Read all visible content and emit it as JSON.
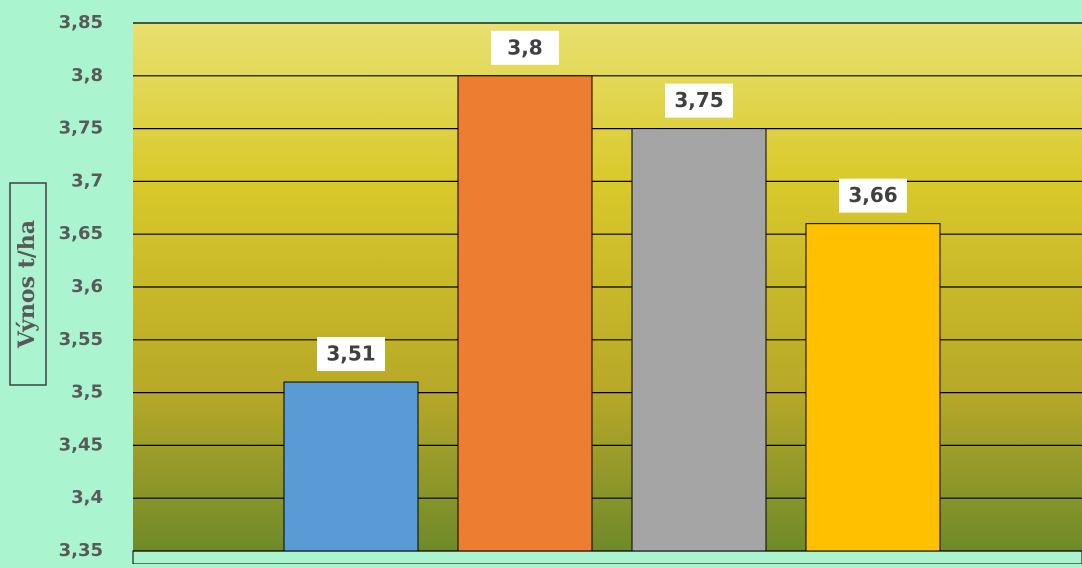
{
  "chart_data": {
    "type": "bar",
    "y_axis_label": "Výnos t/ha",
    "categories": [
      null,
      null,
      null,
      null
    ],
    "values": [
      3.51,
      3.8,
      3.75,
      3.66
    ],
    "value_labels": [
      "3,51",
      "3,8",
      "3,75",
      "3,66"
    ],
    "colors": [
      "#5b9bd5",
      "#ed7d31",
      "#a5a5a5",
      "#ffc000"
    ],
    "ylim": [
      3.35,
      3.85
    ],
    "yticks": [
      {
        "value": 3.35,
        "label": "3,35"
      },
      {
        "value": 3.4,
        "label": "3,4"
      },
      {
        "value": 3.45,
        "label": "3,45"
      },
      {
        "value": 3.5,
        "label": "3,5"
      },
      {
        "value": 3.55,
        "label": "3,55"
      },
      {
        "value": 3.6,
        "label": "3,6"
      },
      {
        "value": 3.65,
        "label": "3,65"
      },
      {
        "value": 3.7,
        "label": "3,7"
      },
      {
        "value": 3.75,
        "label": "3,75"
      },
      {
        "value": 3.8,
        "label": "3,8"
      },
      {
        "value": 3.85,
        "label": "3,85"
      }
    ],
    "grid": true
  }
}
